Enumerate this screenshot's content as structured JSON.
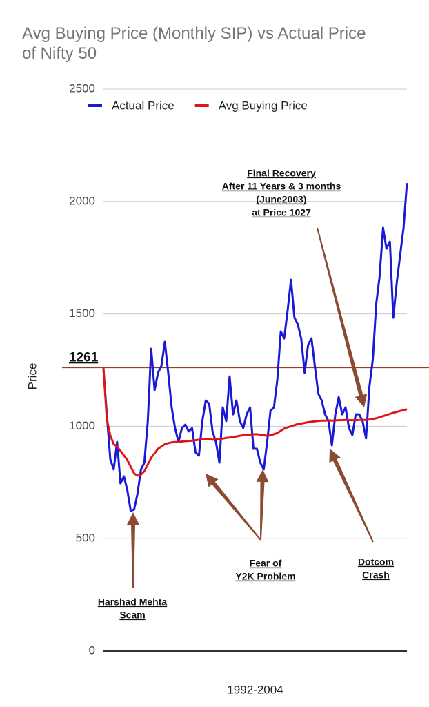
{
  "chart_data": {
    "type": "line",
    "title": "Avg Buying Price (Monthly SIP)  vs Actual Price of Nifty 50",
    "xlabel": "1992-2004",
    "ylabel": "Price",
    "ylim": [
      0,
      2500
    ],
    "yticks": [
      0,
      500,
      1000,
      1500,
      2000,
      2500
    ],
    "grid": true,
    "legend": "top",
    "hline": {
      "value": 1261,
      "color": "#9b3d2a"
    },
    "series": [
      {
        "name": "Actual Price",
        "color": "#1a1ad6",
        "values": [
          1253,
          1053,
          854,
          808,
          930,
          746,
          777,
          716,
          623,
          630,
          700,
          808,
          838,
          1023,
          1345,
          1161,
          1238,
          1268,
          1376,
          1238,
          1084,
          992,
          930,
          992,
          1007,
          977,
          992,
          884,
          869,
          1023,
          1115,
          1100,
          977,
          930,
          838,
          1084,
          1023,
          1222,
          1053,
          1115,
          1023,
          992,
          1053,
          1084,
          900,
          900,
          838,
          808,
          930,
          1069,
          1084,
          1207,
          1422,
          1391,
          1514,
          1652,
          1483,
          1453,
          1391,
          1238,
          1361,
          1391,
          1268,
          1145,
          1115,
          1053,
          1023,
          915,
          1053,
          1130,
          1053,
          1084,
          992,
          961,
          1053,
          1053,
          1023,
          946,
          1176,
          1299,
          1545,
          1668,
          1883,
          1790,
          1821,
          1483,
          1637,
          1760,
          1883,
          2082
        ]
      },
      {
        "name": "Avg Buying Price",
        "color": "#e01616",
        "values": [
          1261,
          1030,
          960,
          920,
          910,
          890,
          870,
          850,
          820,
          790,
          780,
          785,
          800,
          830,
          860,
          880,
          900,
          910,
          920,
          925,
          928,
          930,
          930,
          932,
          934,
          935,
          936,
          938,
          940,
          942,
          945,
          943,
          940,
          942,
          944,
          945,
          948,
          950,
          952,
          955,
          958,
          960,
          962,
          963,
          964,
          965,
          962,
          960,
          958,
          960,
          965,
          970,
          980,
          990,
          995,
          1000,
          1005,
          1010,
          1012,
          1015,
          1018,
          1020,
          1022,
          1024,
          1025,
          1025,
          1026,
          1025,
          1026,
          1027,
          1027,
          1028,
          1027,
          1027,
          1027,
          1028,
          1028,
          1028,
          1030,
          1032,
          1036,
          1040,
          1045,
          1050,
          1055,
          1060,
          1064,
          1068,
          1072,
          1076
        ]
      }
    ],
    "annotations": [
      {
        "lines": [
          "Final Recovery",
          "After 11 Years & 3 months",
          "(June2003)",
          "at Price 1027"
        ]
      },
      {
        "lines": [
          "Harshad Mehta",
          "Scam"
        ]
      },
      {
        "lines": [
          "Fear of",
          "Y2K Problem"
        ]
      },
      {
        "lines": [
          "Dotcom",
          "Crash"
        ]
      }
    ]
  }
}
